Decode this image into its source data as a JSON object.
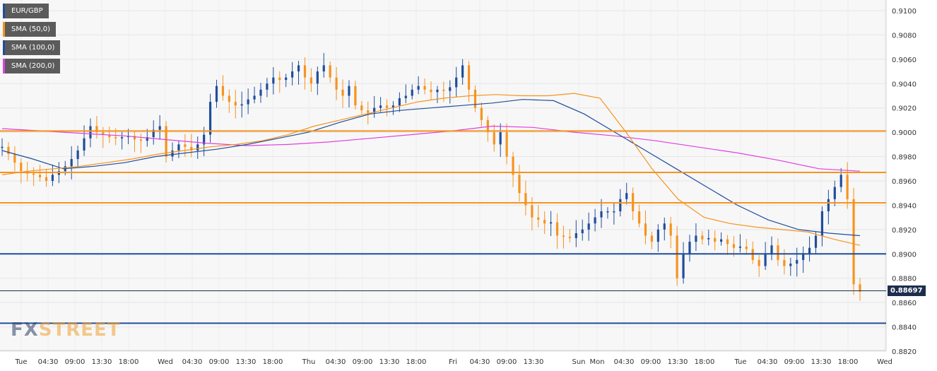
{
  "legend": [
    {
      "label": "EUR/GBP",
      "color": "#1f4e9c"
    },
    {
      "label": "SMA (50,0)",
      "color": "#f7931e"
    },
    {
      "label": "SMA (100,0)",
      "color": "#1f4e9c"
    },
    {
      "label": "SMA (200,0)",
      "color": "#e040e0"
    }
  ],
  "current_price": "0.88697",
  "brand": {
    "part1": "FX",
    "part2": "STREET"
  },
  "chart_data": {
    "type": "candlestick",
    "title": "",
    "xlabel": "",
    "ylabel": "",
    "ylim": [
      0.882,
      0.9105
    ],
    "y_ticks": [
      "0.9100",
      "0.9080",
      "0.9060",
      "0.9040",
      "0.9020",
      "0.9000",
      "0.8980",
      "0.8960",
      "0.8940",
      "0.8920",
      "0.8900",
      "0.8880",
      "0.8860",
      "0.8840",
      "0.8820"
    ],
    "x_ticks": [
      "Tue",
      "04:30",
      "09:00",
      "13:30",
      "18:00",
      "Wed",
      "04:30",
      "09:00",
      "13:30",
      "18:00",
      "Thu",
      "04:30",
      "09:00",
      "13:30",
      "18:00",
      "Fri",
      "04:30",
      "09:00",
      "13:30",
      "Sun",
      "Mon",
      "04:30",
      "09:00",
      "13:30",
      "18:00",
      "Tue",
      "04:30",
      "09:00",
      "13:30",
      "18:00",
      "Wed"
    ],
    "grid": true,
    "horizontal_levels": [
      {
        "value": 0.9001,
        "color": "#f7931e"
      },
      {
        "value": 0.8967,
        "color": "#f7931e"
      },
      {
        "value": 0.8942,
        "color": "#f7931e"
      },
      {
        "value": 0.89,
        "color": "#1f4e9c"
      },
      {
        "value": 0.8843,
        "color": "#1f4e9c"
      }
    ],
    "current_price_value": 0.88697,
    "up_color": "#1f4e9c",
    "down_color": "#f7931e",
    "price_path": [
      0.8988,
      0.8982,
      0.8975,
      0.8968,
      0.8966,
      0.8965,
      0.8963,
      0.896,
      0.8965,
      0.8968,
      0.8972,
      0.8978,
      0.8985,
      0.8995,
      0.9005,
      0.9,
      0.8998,
      0.8996,
      0.8995,
      0.8996,
      0.8997,
      0.8994,
      0.8993,
      0.8996,
      0.9002,
      0.9005,
      0.898,
      0.8985,
      0.899,
      0.8988,
      0.8985,
      0.899,
      0.8998,
      0.9025,
      0.9038,
      0.903,
      0.9025,
      0.9022,
      0.9023,
      0.9027,
      0.903,
      0.9035,
      0.904,
      0.9045,
      0.9043,
      0.9045,
      0.905,
      0.9055,
      0.9045,
      0.904,
      0.905,
      0.9055,
      0.9045,
      0.9035,
      0.903,
      0.9038,
      0.9022,
      0.9018,
      0.9016,
      0.902,
      0.9022,
      0.902,
      0.9022,
      0.9028,
      0.903,
      0.9035,
      0.9038,
      0.9035,
      0.9033,
      0.9035,
      0.9034,
      0.9037,
      0.9045,
      0.9055,
      0.9035,
      0.902,
      0.901,
      0.9,
      0.899,
      0.9,
      0.898,
      0.8965,
      0.895,
      0.894,
      0.893,
      0.8928,
      0.8925,
      0.8926,
      0.8915,
      0.8914,
      0.8913,
      0.8917,
      0.892,
      0.8925,
      0.893,
      0.8935,
      0.8935,
      0.8935,
      0.8945,
      0.895,
      0.8935,
      0.8925,
      0.8915,
      0.891,
      0.892,
      0.8925,
      0.8915,
      0.888,
      0.89,
      0.891,
      0.8915,
      0.8912,
      0.8913,
      0.891,
      0.8912,
      0.8908,
      0.8905,
      0.8906,
      0.8904,
      0.8895,
      0.889,
      0.89,
      0.8907,
      0.8895,
      0.889,
      0.8892,
      0.8895,
      0.89,
      0.8905,
      0.8915,
      0.8935,
      0.8945,
      0.8955,
      0.8965,
      0.8945,
      0.8875,
      0.8869
    ],
    "sma50": [
      0.8965,
      0.8968,
      0.897,
      0.8972,
      0.8975,
      0.8978,
      0.8982,
      0.8985,
      0.8988,
      0.899,
      0.8993,
      0.8998,
      0.9005,
      0.901,
      0.9015,
      0.902,
      0.9025,
      0.9028,
      0.903,
      0.9031,
      0.903,
      0.903,
      0.9032,
      0.9028,
      0.9,
      0.897,
      0.8945,
      0.893,
      0.8925,
      0.8922,
      0.892,
      0.8918,
      0.8912,
      0.8907
    ],
    "sma100": [
      0.8985,
      0.8978,
      0.897,
      0.8972,
      0.8975,
      0.898,
      0.8983,
      0.8986,
      0.899,
      0.8995,
      0.9,
      0.9008,
      0.9015,
      0.9018,
      0.902,
      0.9022,
      0.9024,
      0.9027,
      0.9026,
      0.9015,
      0.9,
      0.8985,
      0.897,
      0.8955,
      0.894,
      0.8928,
      0.892,
      0.8917,
      0.8915
    ],
    "sma200": [
      0.9003,
      0.9001,
      0.8999,
      0.8997,
      0.8994,
      0.8991,
      0.8989,
      0.899,
      0.8992,
      0.8995,
      0.8998,
      0.9001,
      0.9005,
      0.9004,
      0.9,
      0.8997,
      0.8993,
      0.8988,
      0.8983,
      0.8977,
      0.897,
      0.8968
    ]
  }
}
